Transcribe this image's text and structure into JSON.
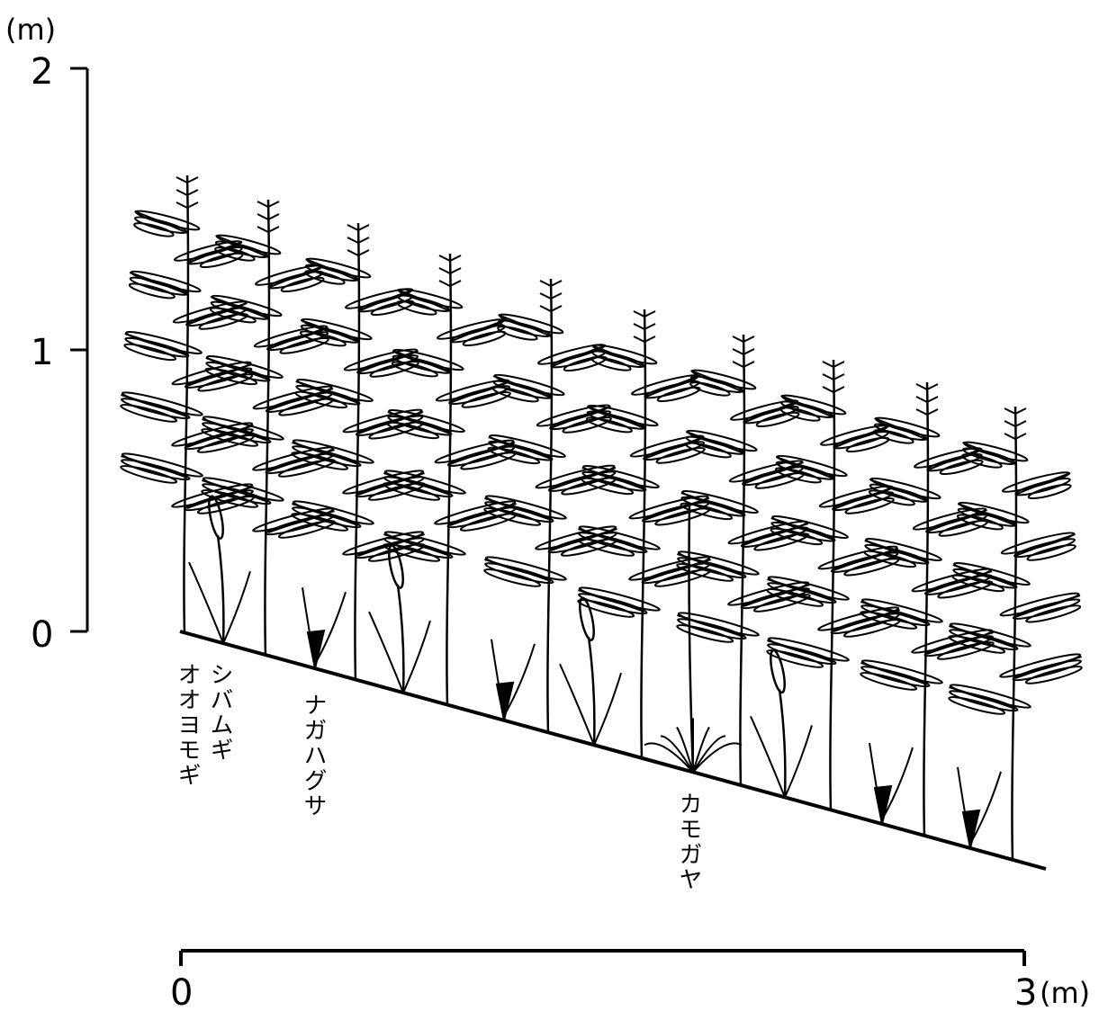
{
  "vertical_axis": {
    "unit_label": "(m)",
    "ticks": [
      "2",
      "1",
      "0"
    ]
  },
  "horizontal_scale": {
    "start_label": "0",
    "end_label": "3",
    "unit_label": "(m)"
  },
  "species_labels": [
    {
      "id": "shibamugi",
      "text": "シバムギ"
    },
    {
      "id": "ooyomogi",
      "text": "オオヨモギ"
    },
    {
      "id": "nagahagusa",
      "text": "ナガハグサ"
    },
    {
      "id": "kamogaya",
      "text": "カモガヤ"
    }
  ],
  "colors": {
    "ink": "#000000",
    "background": "#ffffff"
  },
  "plants": {
    "tall_herb": "オオヨモギ",
    "grasses": [
      "シバムギ",
      "ナガハグサ",
      "カモガヤ"
    ]
  }
}
